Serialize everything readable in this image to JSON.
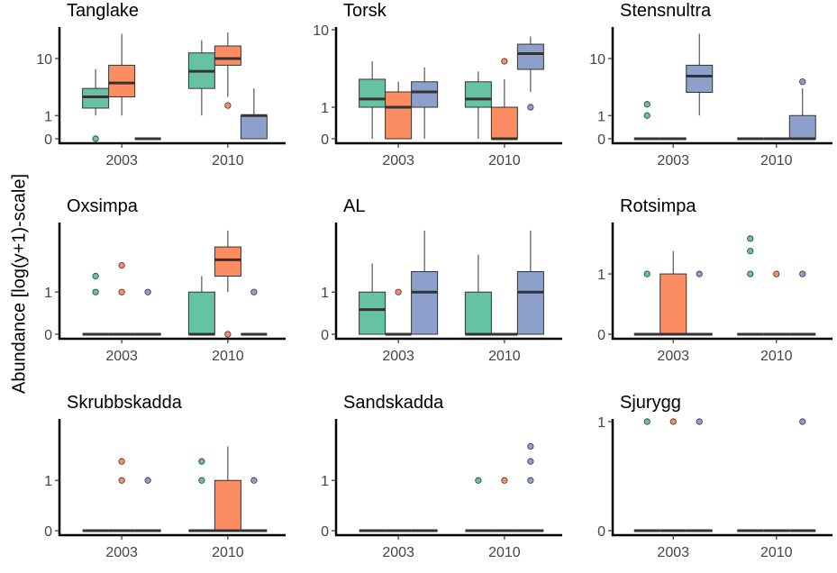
{
  "ylabel": "Abundance [log(y+1)-scale]",
  "colors": {
    "group1": "#66c2a5",
    "group2": "#fc8d62",
    "group3": "#8da0cb",
    "median": "#333333",
    "axis": "#000000"
  },
  "chart_data": {
    "type": "boxplot",
    "layout": "3x3 facet grid",
    "y_scale": "log(y+1)",
    "x_categories": [
      "2003",
      "2010"
    ],
    "panels": [
      {
        "title": "Tanglake",
        "y_ticks": [
          {
            "value": 0,
            "label": "0"
          },
          {
            "value": 1,
            "label": "1"
          },
          {
            "value": 10,
            "label": "10"
          }
        ],
        "ymax": 25,
        "boxes": [
          {
            "year": "2003",
            "group": 1,
            "whisker_low": 1,
            "q1": 1.5,
            "median": 2.5,
            "q3": 3.5,
            "whisker_high": 7,
            "outliers": [
              0
            ]
          },
          {
            "year": "2003",
            "group": 2,
            "whisker_low": 1,
            "q1": 2.5,
            "median": 4.3,
            "q3": 8,
            "whisker_high": 22,
            "outliers": []
          },
          {
            "year": "2003",
            "group": 3,
            "whisker_low": 0,
            "q1": 0,
            "median": 0,
            "q3": 0,
            "whisker_high": 0,
            "outliers": []
          },
          {
            "year": "2010",
            "group": 1,
            "whisker_low": 1,
            "q1": 3.5,
            "median": 6.5,
            "q3": 12,
            "whisker_high": 18,
            "outliers": []
          },
          {
            "year": "2010",
            "group": 2,
            "whisker_low": 2.5,
            "q1": 8,
            "median": 10,
            "q3": 15,
            "whisker_high": 23,
            "outliers": [
              1.7
            ]
          },
          {
            "year": "2010",
            "group": 3,
            "whisker_low": 0,
            "q1": 0,
            "median": 1,
            "q3": 1,
            "whisker_high": 3.5,
            "outliers": []
          }
        ]
      },
      {
        "title": "Torsk",
        "y_ticks": [
          {
            "value": 0,
            "label": "0"
          },
          {
            "value": 1,
            "label": "1"
          },
          {
            "value": 10,
            "label": "10"
          }
        ],
        "ymax": 10,
        "boxes": [
          {
            "year": "2003",
            "group": 1,
            "whisker_low": 0,
            "q1": 1,
            "median": 1.4,
            "q3": 2.7,
            "whisker_high": 4.5,
            "outliers": []
          },
          {
            "year": "2003",
            "group": 2,
            "whisker_low": 0,
            "q1": 0,
            "median": 1,
            "q3": 1.8,
            "whisker_high": 2.5,
            "outliers": []
          },
          {
            "year": "2003",
            "group": 3,
            "whisker_low": 0,
            "q1": 1,
            "median": 1.8,
            "q3": 2.5,
            "whisker_high": 3.8,
            "outliers": []
          },
          {
            "year": "2010",
            "group": 1,
            "whisker_low": 0,
            "q1": 1,
            "median": 1.4,
            "q3": 2.5,
            "whisker_high": 3.4,
            "outliers": []
          },
          {
            "year": "2010",
            "group": 2,
            "whisker_low": 0,
            "q1": 0,
            "median": 0,
            "q3": 1,
            "whisker_high": 2.7,
            "outliers": [
              4.5
            ]
          },
          {
            "year": "2010",
            "group": 3,
            "whisker_low": 1.8,
            "q1": 3.6,
            "median": 5.5,
            "q3": 7,
            "whisker_high": 8.5,
            "outliers": [
              1
            ]
          }
        ]
      },
      {
        "title": "Stensnultra",
        "y_ticks": [
          {
            "value": 0,
            "label": "0"
          },
          {
            "value": 1,
            "label": "1"
          },
          {
            "value": 10,
            "label": "10"
          }
        ],
        "ymax": 25,
        "boxes": [
          {
            "year": "2003",
            "group": 1,
            "whisker_low": 0,
            "q1": 0,
            "median": 0,
            "q3": 0,
            "whisker_high": 0,
            "outliers": [
              1,
              1.8
            ]
          },
          {
            "year": "2003",
            "group": 2,
            "whisker_low": 0,
            "q1": 0,
            "median": 0,
            "q3": 0,
            "whisker_high": 0,
            "outliers": []
          },
          {
            "year": "2003",
            "group": 3,
            "whisker_low": 1,
            "q1": 3,
            "median": 5.5,
            "q3": 8,
            "whisker_high": 22,
            "outliers": []
          },
          {
            "year": "2010",
            "group": 1,
            "whisker_low": 0,
            "q1": 0,
            "median": 0,
            "q3": 0,
            "whisker_high": 0,
            "outliers": []
          },
          {
            "year": "2010",
            "group": 2,
            "whisker_low": 0,
            "q1": 0,
            "median": 0,
            "q3": 0,
            "whisker_high": 0,
            "outliers": []
          },
          {
            "year": "2010",
            "group": 3,
            "whisker_low": 0,
            "q1": 0,
            "median": 0,
            "q3": 1,
            "whisker_high": 3.5,
            "outliers": [
              4.5
            ]
          }
        ]
      },
      {
        "title": "Oxsimpa",
        "y_ticks": [
          {
            "value": 0,
            "label": "0"
          },
          {
            "value": 1,
            "label": "1"
          }
        ],
        "ymax": 5,
        "boxes": [
          {
            "year": "2003",
            "group": 1,
            "whisker_low": 0,
            "q1": 0,
            "median": 0,
            "q3": 0,
            "whisker_high": 0,
            "outliers": [
              1,
              1.6
            ]
          },
          {
            "year": "2003",
            "group": 2,
            "whisker_low": 0,
            "q1": 0,
            "median": 0,
            "q3": 0,
            "whisker_high": 0,
            "outliers": [
              1,
              2.1
            ]
          },
          {
            "year": "2003",
            "group": 3,
            "whisker_low": 0,
            "q1": 0,
            "median": 0,
            "q3": 0,
            "whisker_high": 0,
            "outliers": [
              1
            ]
          },
          {
            "year": "2010",
            "group": 1,
            "whisker_low": 0,
            "q1": 0,
            "median": 0,
            "q3": 1,
            "whisker_high": 1.6,
            "outliers": []
          },
          {
            "year": "2010",
            "group": 2,
            "whisker_low": 1,
            "q1": 1.6,
            "median": 2.4,
            "q3": 3.2,
            "whisker_high": 4.5,
            "outliers": [
              0
            ]
          },
          {
            "year": "2010",
            "group": 3,
            "whisker_low": 0,
            "q1": 0,
            "median": 0,
            "q3": 0,
            "whisker_high": 0,
            "outliers": [
              1
            ]
          }
        ]
      },
      {
        "title": "AL",
        "y_ticks": [
          {
            "value": 0,
            "label": "0"
          },
          {
            "value": 1,
            "label": "1"
          }
        ],
        "ymax": 5,
        "boxes": [
          {
            "year": "2003",
            "group": 1,
            "whisker_low": 0,
            "q1": 0,
            "median": 0.5,
            "q3": 1,
            "whisker_high": 2.2,
            "outliers": []
          },
          {
            "year": "2003",
            "group": 2,
            "whisker_low": 0,
            "q1": 0,
            "median": 0,
            "q3": 0,
            "whisker_high": 0,
            "outliers": [
              1
            ]
          },
          {
            "year": "2003",
            "group": 3,
            "whisker_low": 0,
            "q1": 0,
            "median": 1,
            "q3": 1.8,
            "whisker_high": 4.5,
            "outliers": []
          },
          {
            "year": "2010",
            "group": 1,
            "whisker_low": 0,
            "q1": 0,
            "median": 0,
            "q3": 1,
            "whisker_high": 2.7,
            "outliers": []
          },
          {
            "year": "2010",
            "group": 2,
            "whisker_low": 0,
            "q1": 0,
            "median": 0,
            "q3": 0,
            "whisker_high": 0,
            "outliers": []
          },
          {
            "year": "2010",
            "group": 3,
            "whisker_low": 0,
            "q1": 0,
            "median": 1,
            "q3": 1.8,
            "whisker_high": 4.5,
            "outliers": []
          }
        ]
      },
      {
        "title": "Rotsimpa",
        "y_ticks": [
          {
            "value": 0,
            "label": "0"
          },
          {
            "value": 1,
            "label": "1"
          }
        ],
        "ymax": 2.5,
        "boxes": [
          {
            "year": "2003",
            "group": 1,
            "whisker_low": 0,
            "q1": 0,
            "median": 0,
            "q3": 0,
            "whisker_high": 0,
            "outliers": [
              1
            ]
          },
          {
            "year": "2003",
            "group": 2,
            "whisker_low": 0,
            "q1": 0,
            "median": 0,
            "q3": 1,
            "whisker_high": 1.6,
            "outliers": []
          },
          {
            "year": "2003",
            "group": 3,
            "whisker_low": 0,
            "q1": 0,
            "median": 0,
            "q3": 0,
            "whisker_high": 0,
            "outliers": [
              1
            ]
          },
          {
            "year": "2010",
            "group": 1,
            "whisker_low": 0,
            "q1": 0,
            "median": 0,
            "q3": 0,
            "whisker_high": 0,
            "outliers": [
              1,
              1.6,
              2
            ]
          },
          {
            "year": "2010",
            "group": 2,
            "whisker_low": 0,
            "q1": 0,
            "median": 0,
            "q3": 0,
            "whisker_high": 0,
            "outliers": [
              1
            ]
          },
          {
            "year": "2010",
            "group": 3,
            "whisker_low": 0,
            "q1": 0,
            "median": 0,
            "q3": 0,
            "whisker_high": 0,
            "outliers": [
              1
            ]
          }
        ]
      },
      {
        "title": "Skrubbskadda",
        "y_ticks": [
          {
            "value": 0,
            "label": "0"
          },
          {
            "value": 1,
            "label": "1"
          }
        ],
        "ymax": 3.5,
        "boxes": [
          {
            "year": "2003",
            "group": 1,
            "whisker_low": 0,
            "q1": 0,
            "median": 0,
            "q3": 0,
            "whisker_high": 0,
            "outliers": []
          },
          {
            "year": "2003",
            "group": 2,
            "whisker_low": 0,
            "q1": 0,
            "median": 0,
            "q3": 0,
            "whisker_high": 0,
            "outliers": [
              1,
              1.6
            ]
          },
          {
            "year": "2003",
            "group": 3,
            "whisker_low": 0,
            "q1": 0,
            "median": 0,
            "q3": 0,
            "whisker_high": 0,
            "outliers": [
              1
            ]
          },
          {
            "year": "2010",
            "group": 1,
            "whisker_low": 0,
            "q1": 0,
            "median": 0,
            "q3": 0,
            "whisker_high": 0,
            "outliers": [
              1,
              1.6
            ]
          },
          {
            "year": "2010",
            "group": 2,
            "whisker_low": 0,
            "q1": 0,
            "median": 0,
            "q3": 1,
            "whisker_high": 2.2,
            "outliers": []
          },
          {
            "year": "2010",
            "group": 3,
            "whisker_low": 0,
            "q1": 0,
            "median": 0,
            "q3": 0,
            "whisker_high": 0,
            "outliers": [
              1
            ]
          }
        ]
      },
      {
        "title": "Sandskadda",
        "y_ticks": [
          {
            "value": 0,
            "label": "0"
          },
          {
            "value": 1,
            "label": "1"
          }
        ],
        "ymax": 3.5,
        "boxes": [
          {
            "year": "2003",
            "group": 1,
            "whisker_low": 0,
            "q1": 0,
            "median": 0,
            "q3": 0,
            "whisker_high": 0,
            "outliers": []
          },
          {
            "year": "2003",
            "group": 2,
            "whisker_low": 0,
            "q1": 0,
            "median": 0,
            "q3": 0,
            "whisker_high": 0,
            "outliers": []
          },
          {
            "year": "2003",
            "group": 3,
            "whisker_low": 0,
            "q1": 0,
            "median": 0,
            "q3": 0,
            "whisker_high": 0,
            "outliers": []
          },
          {
            "year": "2010",
            "group": 1,
            "whisker_low": 0,
            "q1": 0,
            "median": 0,
            "q3": 0,
            "whisker_high": 0,
            "outliers": [
              1
            ]
          },
          {
            "year": "2010",
            "group": 2,
            "whisker_low": 0,
            "q1": 0,
            "median": 0,
            "q3": 0,
            "whisker_high": 0,
            "outliers": [
              1
            ]
          },
          {
            "year": "2010",
            "group": 3,
            "whisker_low": 0,
            "q1": 0,
            "median": 0,
            "q3": 0,
            "whisker_high": 0,
            "outliers": [
              1,
              1.6,
              2.2
            ]
          }
        ]
      },
      {
        "title": "Sjurygg",
        "y_ticks": [
          {
            "value": 0,
            "label": "0"
          },
          {
            "value": 1,
            "label": "1"
          }
        ],
        "ymax": 1,
        "boxes": [
          {
            "year": "2003",
            "group": 1,
            "whisker_low": 0,
            "q1": 0,
            "median": 0,
            "q3": 0,
            "whisker_high": 0,
            "outliers": [
              1
            ]
          },
          {
            "year": "2003",
            "group": 2,
            "whisker_low": 0,
            "q1": 0,
            "median": 0,
            "q3": 0,
            "whisker_high": 0,
            "outliers": [
              1
            ]
          },
          {
            "year": "2003",
            "group": 3,
            "whisker_low": 0,
            "q1": 0,
            "median": 0,
            "q3": 0,
            "whisker_high": 0,
            "outliers": [
              1
            ]
          },
          {
            "year": "2010",
            "group": 1,
            "whisker_low": 0,
            "q1": 0,
            "median": 0,
            "q3": 0,
            "whisker_high": 0,
            "outliers": []
          },
          {
            "year": "2010",
            "group": 2,
            "whisker_low": 0,
            "q1": 0,
            "median": 0,
            "q3": 0,
            "whisker_high": 0,
            "outliers": []
          },
          {
            "year": "2010",
            "group": 3,
            "whisker_low": 0,
            "q1": 0,
            "median": 0,
            "q3": 0,
            "whisker_high": 0,
            "outliers": [
              1
            ]
          }
        ]
      }
    ]
  }
}
